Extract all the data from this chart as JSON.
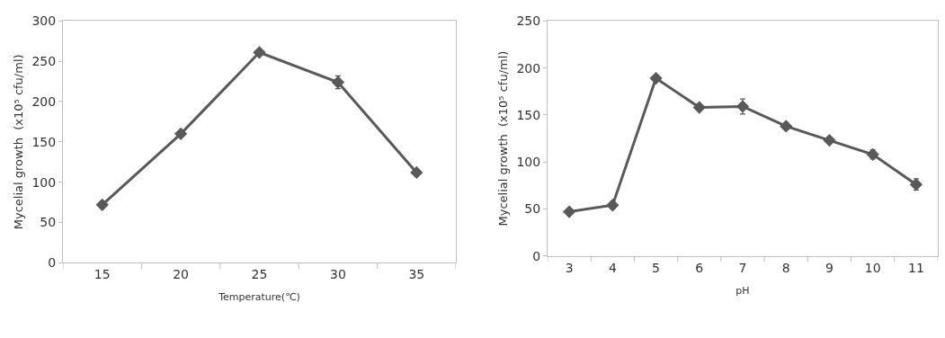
{
  "chart_data": [
    {
      "type": "line",
      "xlabel": "Temperature(℃)",
      "ylabel": "Mycelial growth  (x10⁵ cfu/ml)",
      "categories": [
        "15",
        "20",
        "25",
        "30",
        "35"
      ],
      "series": [
        {
          "color": "#595959",
          "values": [
            72,
            160,
            261,
            224,
            112
          ],
          "errors": [
            null,
            null,
            null,
            8,
            null
          ]
        }
      ],
      "ylim": [
        0,
        300
      ],
      "yticks": [
        0,
        50,
        100,
        150,
        200,
        250,
        300
      ],
      "marker": "diamond",
      "line_style": "solid"
    },
    {
      "type": "line",
      "xlabel": "pH",
      "ylabel": "Mycelial growth  (x10⁵ cfu/ml)",
      "categories": [
        "3",
        "4",
        "5",
        "6",
        "7",
        "8",
        "9",
        "10",
        "11"
      ],
      "series": [
        {
          "color": "#595959",
          "values": [
            47,
            54,
            189,
            158,
            159,
            138,
            123,
            108,
            76
          ],
          "errors": [
            null,
            4,
            null,
            null,
            8,
            null,
            null,
            5,
            6
          ]
        }
      ],
      "ylim": [
        0,
        250
      ],
      "yticks": [
        0,
        50,
        100,
        150,
        200,
        250
      ],
      "marker": "diamond",
      "line_style": "solid"
    }
  ]
}
